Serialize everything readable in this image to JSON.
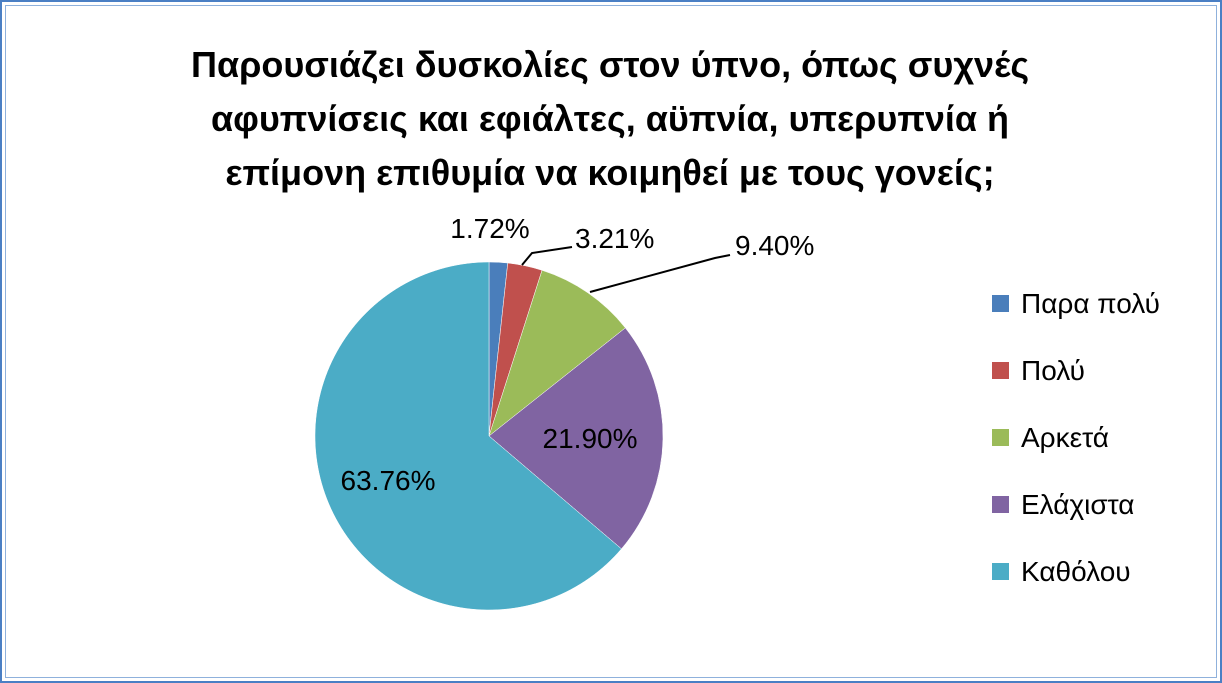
{
  "chart_data": {
    "type": "pie",
    "title_lines": [
      "Παρουσιάζει δυσκολίες στον ύπνο, όπως συχνές",
      "αφυπνίσεις και εφιάλτες, αϋπνία, υπερυπνία ή",
      "επίμονη επιθυμία να κοιμηθεί με τους γονείς;"
    ],
    "categories": [
      "Παρα πολύ",
      "Πολύ",
      "Αρκετά",
      "Ελάχιστα",
      "Καθόλου"
    ],
    "values": [
      1.72,
      3.21,
      9.4,
      21.9,
      63.76
    ],
    "data_labels": [
      "1.72%",
      "3.21%",
      "9.40%",
      "21.90%",
      "63.76%"
    ],
    "colors": [
      "#4a7ebb",
      "#c0504d",
      "#9bbb59",
      "#8064a2",
      "#4bacc6"
    ],
    "legend_position": "right",
    "start_angle": "12 o'clock",
    "direction": "clockwise"
  }
}
